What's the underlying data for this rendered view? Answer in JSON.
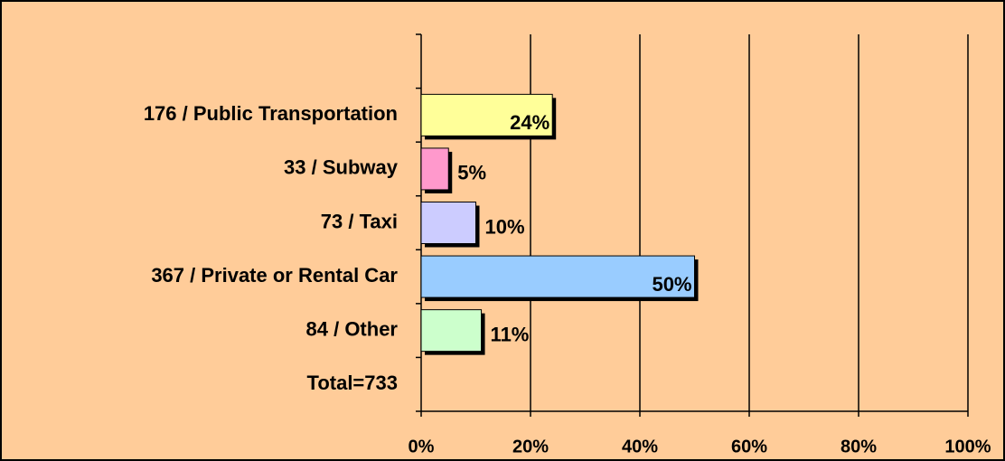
{
  "chart_data": {
    "type": "bar",
    "orientation": "horizontal",
    "categories": [
      null,
      "176 / Public Transportation",
      "33 / Subway",
      "73 / Taxi",
      "367 / Private or Rental Car",
      "84 / Other",
      "Total=733"
    ],
    "values": [
      null,
      24,
      5,
      10,
      50,
      11,
      null
    ],
    "value_labels": [
      null,
      "24%",
      "5%",
      "10%",
      "50%",
      "11%",
      null
    ],
    "colors": [
      null,
      "#ffff99",
      "#ff99cc",
      "#ccccff",
      "#99ccff",
      "#ccffcc",
      null
    ],
    "xlim": [
      0,
      100
    ],
    "xticks": [
      {
        "value": 0,
        "label": "0%"
      },
      {
        "value": 20,
        "label": "20%"
      },
      {
        "value": 40,
        "label": "40%"
      },
      {
        "value": 60,
        "label": "60%"
      },
      {
        "value": 80,
        "label": "80%"
      },
      {
        "value": 100,
        "label": "100%"
      }
    ],
    "grid": true
  }
}
